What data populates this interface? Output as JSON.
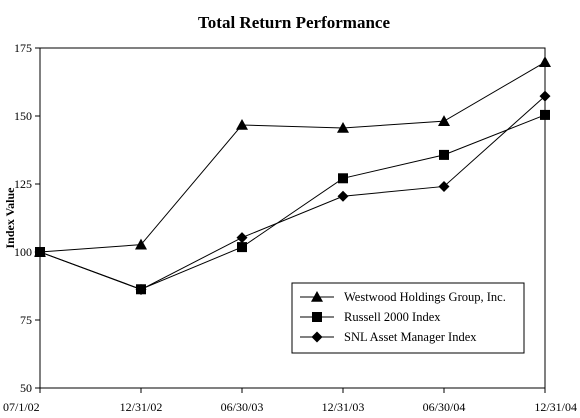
{
  "chart_data": {
    "type": "line",
    "title": "Total Return Performance",
    "xlabel": "",
    "ylabel": "Index Value",
    "categories": [
      "07/1/02",
      "12/31/02",
      "06/30/03",
      "12/31/03",
      "06/30/04",
      "12/31/04"
    ],
    "ylim": [
      50,
      175
    ],
    "yticks": [
      50,
      75,
      100,
      125,
      150,
      175
    ],
    "grid": false,
    "legend_position": "bottom-right",
    "series": [
      {
        "name": "Westwood Holdings Group, Inc.",
        "marker": "triangle",
        "values": [
          100,
          102.7,
          146.7,
          145.6,
          148.1,
          169.8
        ]
      },
      {
        "name": "Russell 2000 Index",
        "marker": "square",
        "values": [
          100,
          86.3,
          101.8,
          127.1,
          135.7,
          150.4
        ]
      },
      {
        "name": "SNL Asset Manager Index",
        "marker": "diamond",
        "values": [
          100,
          86.2,
          105.3,
          120.5,
          124.1,
          157.3
        ]
      }
    ],
    "colors": {
      "line": "#000000",
      "marker": "#000000",
      "frame": "#000000",
      "background": "#ffffff"
    }
  }
}
